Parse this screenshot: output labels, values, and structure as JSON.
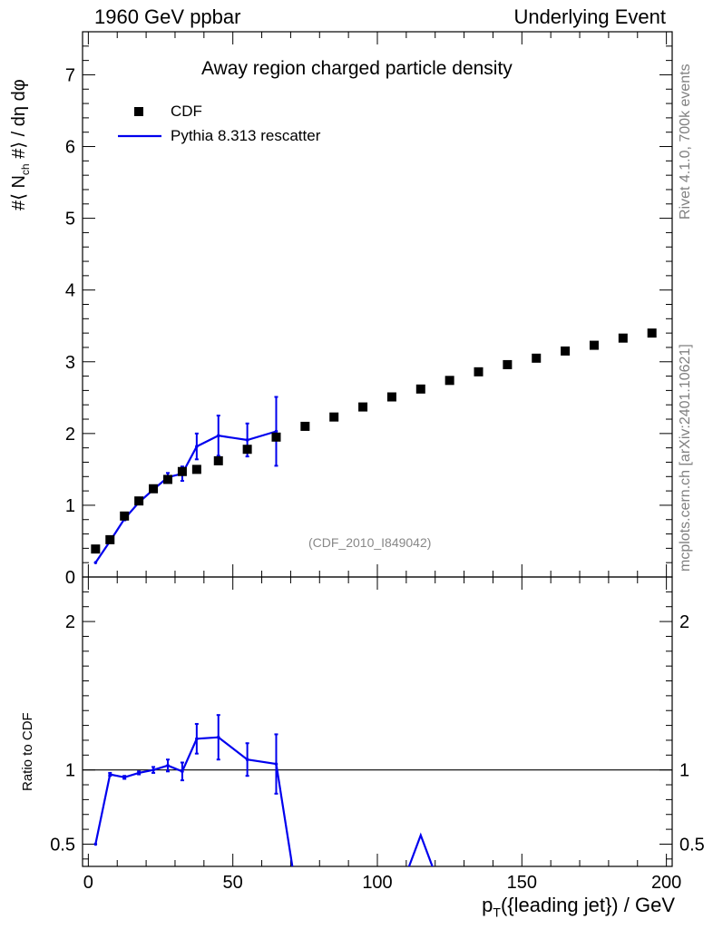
{
  "header": {
    "left": "1960 GeV ppbar",
    "right": "Underlying Event"
  },
  "side_labels": {
    "rivet": "Rivet 4.1.0,  700k events",
    "mcplots": "mcplots.cern.ch [arXiv:2401.10621]"
  },
  "chart_data": [
    {
      "type": "scatter",
      "panel": "main",
      "title": "Away region charged particle density",
      "ylabel_parts": {
        "a": "#⟨ N",
        "sub": "ch",
        "b": " #⟩ / dη dφ"
      },
      "watermark": "(CDF_2010_I849042)",
      "xlim": [
        -2,
        202
      ],
      "ylim": [
        0,
        7.6
      ],
      "yticks": [
        0,
        1,
        2,
        3,
        4,
        5,
        6,
        7
      ],
      "legend": {
        "placement": "top-left",
        "entries": [
          "CDF",
          "Pythia 8.313 rescatter"
        ]
      },
      "series": [
        {
          "name": "CDF",
          "style": "markers",
          "color": "#000000",
          "x": [
            2.5,
            7.5,
            12.5,
            17.5,
            22.5,
            27.5,
            32.5,
            37.5,
            45,
            55,
            65,
            75,
            85,
            95,
            105,
            115,
            125,
            135,
            145,
            155,
            165,
            175,
            185,
            195
          ],
          "y": [
            0.39,
            0.52,
            0.85,
            1.06,
            1.23,
            1.36,
            1.47,
            1.5,
            1.62,
            1.78,
            1.95,
            2.1,
            2.23,
            2.37,
            2.51,
            2.62,
            2.74,
            2.86,
            2.96,
            3.05,
            3.15,
            3.23,
            3.33,
            3.4
          ]
        },
        {
          "name": "Pythia 8.313 rescatter",
          "style": "line",
          "color": "#0000ee",
          "x": [
            2.5,
            7.5,
            12.5,
            17.5,
            22.5,
            27.5,
            32.5,
            37.5,
            45,
            55,
            65
          ],
          "y": [
            0.2,
            0.5,
            0.81,
            1.04,
            1.22,
            1.39,
            1.44,
            1.82,
            1.97,
            1.91,
            2.03
          ],
          "err": [
            0,
            0.02,
            0.02,
            0.02,
            0.03,
            0.06,
            0.1,
            0.18,
            0.28,
            0.23,
            0.48
          ]
        }
      ]
    },
    {
      "type": "line",
      "panel": "ratio",
      "ylabel": "Ratio to CDF",
      "xlabel_parts": {
        "a": "p",
        "sub": "T",
        "b": "({leading jet}) / GeV"
      },
      "xlim": [
        -2,
        202
      ],
      "ylim": [
        0.35,
        2.3
      ],
      "xticks": [
        0,
        50,
        100,
        150,
        200
      ],
      "yticks": [
        0.5,
        1,
        2
      ],
      "reference_line": 1,
      "series": [
        {
          "name": "Pythia 8.313 rescatter",
          "color": "#0000ee",
          "segments": [
            {
              "x": [
                2.5,
                7.5,
                12.5,
                17.5,
                22.5,
                27.5,
                32.5,
                37.5,
                45,
                55,
                65,
                71
              ],
              "y": [
                0.5,
                0.97,
                0.95,
                0.98,
                1.0,
                1.03,
                0.99,
                1.21,
                1.22,
                1.07,
                1.04,
                0.3
              ]
            },
            {
              "x": [
                110,
                115,
                120
              ],
              "y": [
                0.3,
                0.56,
                0.3
              ]
            }
          ],
          "points_x": [
            2.5,
            7.5,
            12.5,
            17.5,
            22.5,
            27.5,
            32.5,
            37.5,
            45,
            55,
            65
          ],
          "points_y": [
            0.5,
            0.97,
            0.95,
            0.98,
            1.0,
            1.03,
            0.99,
            1.21,
            1.22,
            1.07,
            1.04
          ],
          "err": [
            0,
            0.01,
            0.01,
            0.01,
            0.02,
            0.04,
            0.06,
            0.1,
            0.15,
            0.11,
            0.2
          ]
        }
      ]
    }
  ]
}
